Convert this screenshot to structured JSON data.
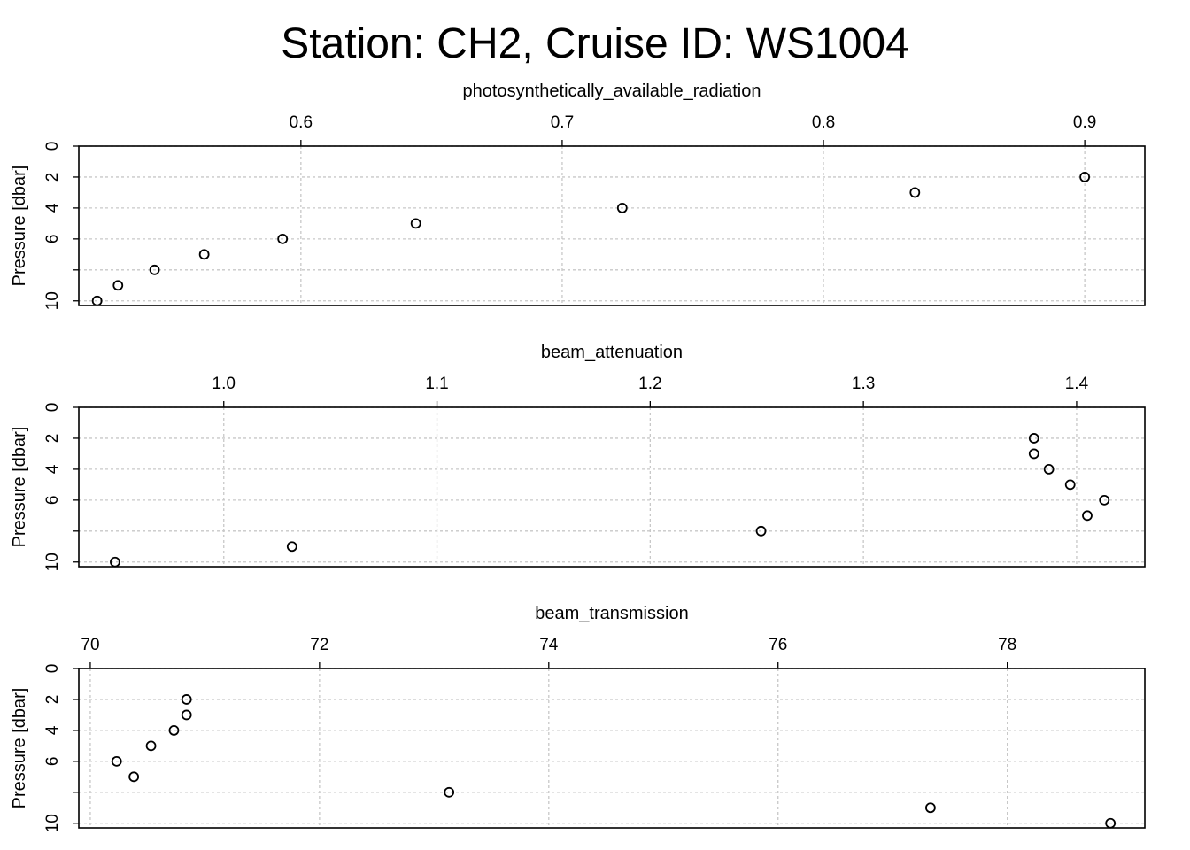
{
  "title": "Station: CH2, Cruise ID: WS1004",
  "chart_data": [
    {
      "type": "scatter",
      "xlabel": "photosynthetically_available_radiation",
      "ylabel": "Pressure [dbar]",
      "xlim": [
        0.515,
        0.923
      ],
      "ylim": [
        0,
        10.3
      ],
      "y_reversed": true,
      "grid": true,
      "xticks": [
        0.6,
        0.7,
        0.8,
        0.9
      ],
      "xtick_labels": [
        "0.6",
        "0.7",
        "0.8",
        "0.9"
      ],
      "yticks": [
        0,
        2,
        4,
        6,
        8,
        10
      ],
      "ytick_labels": [
        "0",
        "2",
        "4",
        "6",
        "",
        "10"
      ],
      "x": [
        0.9,
        0.835,
        0.723,
        0.644,
        0.593,
        0.563,
        0.544,
        0.53,
        0.522
      ],
      "y": [
        2,
        3,
        4,
        5,
        6,
        7,
        8,
        9,
        10
      ]
    },
    {
      "type": "scatter",
      "xlabel": "beam_attenuation",
      "ylabel": "Pressure [dbar]",
      "xlim": [
        0.932,
        1.432
      ],
      "ylim": [
        0,
        10.3
      ],
      "y_reversed": true,
      "grid": true,
      "xticks": [
        1.0,
        1.1,
        1.2,
        1.3,
        1.4
      ],
      "xtick_labels": [
        "1.0",
        "1.1",
        "1.2",
        "1.3",
        "1.4"
      ],
      "yticks": [
        0,
        2,
        4,
        6,
        8,
        10
      ],
      "ytick_labels": [
        "0",
        "2",
        "4",
        "6",
        "",
        "10"
      ],
      "x": [
        1.38,
        1.38,
        1.387,
        1.397,
        1.413,
        1.405,
        1.252,
        1.032,
        0.949
      ],
      "y": [
        2,
        3,
        4,
        5,
        6,
        7,
        8,
        9,
        10
      ]
    },
    {
      "type": "scatter",
      "xlabel": "beam_transmission",
      "ylabel": "Pressure [dbar]",
      "xlim": [
        69.9,
        79.2
      ],
      "ylim": [
        0,
        10.3
      ],
      "y_reversed": true,
      "grid": true,
      "xticks": [
        70,
        72,
        74,
        76,
        78
      ],
      "xtick_labels": [
        "70",
        "72",
        "74",
        "76",
        "78"
      ],
      "yticks": [
        0,
        2,
        4,
        6,
        8,
        10
      ],
      "ytick_labels": [
        "0",
        "2",
        "4",
        "6",
        "",
        "10"
      ],
      "x": [
        70.84,
        70.84,
        70.73,
        70.53,
        70.23,
        70.38,
        73.13,
        77.33,
        78.9
      ],
      "y": [
        2,
        3,
        4,
        5,
        6,
        7,
        8,
        9,
        10
      ]
    }
  ]
}
